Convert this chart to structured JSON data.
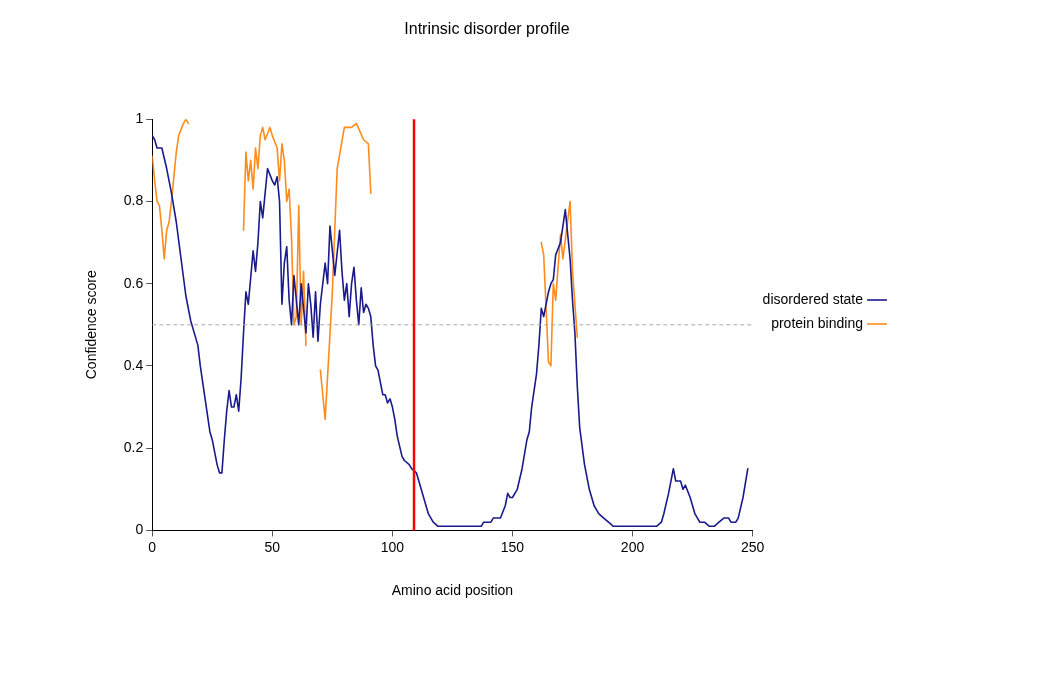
{
  "chart_data": {
    "type": "line",
    "title": "Intrinsic disorder profile",
    "xlabel": "Amino acid position",
    "ylabel": "Confidence score",
    "xlim": [
      0,
      250
    ],
    "xticks": [
      0,
      50,
      100,
      150,
      200,
      250
    ],
    "ylim": [
      0,
      1
    ],
    "yticks": [
      0,
      0.2,
      0.4,
      0.6,
      0.8,
      1
    ],
    "grid": false,
    "legend": "right",
    "marker": "none",
    "line_style": "solid",
    "ref_lines": [
      {
        "axis": "y",
        "value": 0.5,
        "color": "#aaaaaa",
        "line_style": "dashed"
      },
      {
        "axis": "x",
        "value": 109,
        "color": "#ff0000",
        "line_style": "solid"
      }
    ],
    "series": [
      {
        "name": "disordered state",
        "color": "#1a1a8c",
        "x": [
          0,
          1,
          2,
          4,
          6,
          8,
          10,
          12,
          14,
          16,
          18,
          19,
          20,
          22,
          24,
          25,
          27,
          28,
          29,
          30,
          31,
          32,
          33,
          34,
          35,
          36,
          37,
          38,
          39,
          40,
          42,
          43,
          44,
          45,
          46,
          48,
          50,
          51,
          52,
          53,
          54,
          55,
          56,
          57,
          58,
          59,
          60,
          61,
          62,
          64,
          65,
          66,
          67,
          68,
          69,
          70,
          72,
          73,
          74,
          76,
          78,
          79,
          80,
          81,
          82,
          83,
          84,
          85,
          86,
          87,
          88,
          89,
          90,
          91,
          92,
          93,
          94,
          95,
          96,
          97,
          98,
          99,
          100,
          101,
          102,
          104,
          105,
          107,
          108,
          110,
          111,
          113,
          115,
          117,
          119,
          125,
          130,
          137,
          138,
          141,
          142,
          145,
          147,
          148,
          149,
          150,
          152,
          154,
          156,
          157,
          158,
          160,
          161,
          162,
          163,
          165,
          166,
          167,
          168,
          170,
          172,
          173,
          174,
          175,
          176,
          177,
          178,
          180,
          182,
          184,
          186,
          188,
          190,
          192,
          210,
          212,
          213,
          215,
          217,
          218,
          220,
          221,
          222,
          224,
          226,
          228,
          230,
          232,
          234,
          236,
          238,
          240,
          241,
          243,
          244,
          246,
          248
        ],
        "values": [
          0.96,
          0.95,
          0.93,
          0.93,
          0.88,
          0.82,
          0.75,
          0.66,
          0.57,
          0.51,
          0.47,
          0.45,
          0.4,
          0.32,
          0.24,
          0.22,
          0.16,
          0.14,
          0.14,
          0.22,
          0.29,
          0.34,
          0.3,
          0.3,
          0.33,
          0.29,
          0.37,
          0.48,
          0.58,
          0.55,
          0.68,
          0.63,
          0.7,
          0.8,
          0.76,
          0.88,
          0.85,
          0.84,
          0.86,
          0.8,
          0.55,
          0.65,
          0.69,
          0.56,
          0.5,
          0.62,
          0.56,
          0.5,
          0.6,
          0.48,
          0.6,
          0.55,
          0.47,
          0.58,
          0.46,
          0.55,
          0.65,
          0.6,
          0.74,
          0.62,
          0.73,
          0.63,
          0.56,
          0.6,
          0.52,
          0.6,
          0.64,
          0.56,
          0.5,
          0.59,
          0.53,
          0.55,
          0.54,
          0.52,
          0.45,
          0.4,
          0.39,
          0.36,
          0.33,
          0.33,
          0.31,
          0.32,
          0.3,
          0.27,
          0.23,
          0.18,
          0.17,
          0.16,
          0.15,
          0.14,
          0.12,
          0.08,
          0.04,
          0.02,
          0.01,
          0.01,
          0.01,
          0.01,
          0.02,
          0.02,
          0.03,
          0.03,
          0.06,
          0.09,
          0.08,
          0.08,
          0.1,
          0.15,
          0.22,
          0.24,
          0.3,
          0.38,
          0.45,
          0.54,
          0.52,
          0.58,
          0.6,
          0.61,
          0.67,
          0.7,
          0.78,
          0.72,
          0.66,
          0.56,
          0.48,
          0.35,
          0.25,
          0.16,
          0.1,
          0.06,
          0.04,
          0.03,
          0.02,
          0.01,
          0.01,
          0.02,
          0.04,
          0.09,
          0.15,
          0.12,
          0.12,
          0.1,
          0.11,
          0.08,
          0.04,
          0.02,
          0.02,
          0.01,
          0.01,
          0.02,
          0.03,
          0.03,
          0.02,
          0.02,
          0.03,
          0.08,
          0.15
        ]
      },
      {
        "name": "protein binding",
        "color": "#ff8c1a",
        "x": [
          0,
          1,
          2,
          3,
          4,
          5,
          6,
          7,
          8,
          10,
          11,
          13,
          14,
          15,
          16,
          38,
          39,
          40,
          41,
          42,
          43,
          44,
          45,
          46,
          47,
          49,
          50,
          52,
          53,
          54,
          55,
          56,
          57,
          58,
          59,
          60,
          61,
          62,
          63,
          64,
          66,
          69,
          70,
          72,
          75,
          77,
          80,
          83,
          85,
          88,
          90,
          91,
          92,
          162,
          163,
          165,
          166,
          167,
          168,
          170,
          171,
          174,
          175,
          177
        ],
        "values": [
          0.91,
          0.85,
          0.8,
          0.79,
          0.73,
          0.66,
          0.73,
          0.75,
          0.8,
          0.92,
          0.96,
          0.99,
          1.0,
          0.99,
          null,
          0.73,
          0.92,
          0.85,
          0.9,
          0.83,
          0.93,
          0.88,
          0.96,
          0.98,
          0.95,
          0.98,
          0.96,
          0.93,
          0.85,
          0.94,
          0.9,
          0.8,
          0.83,
          0.71,
          0.5,
          0.52,
          0.79,
          0.5,
          0.63,
          0.45,
          null,
          null,
          0.39,
          0.27,
          0.58,
          0.88,
          0.98,
          0.98,
          0.99,
          0.95,
          0.94,
          0.82,
          null,
          0.7,
          0.67,
          0.41,
          0.4,
          0.6,
          0.56,
          0.72,
          0.66,
          0.8,
          0.63,
          0.47
        ]
      }
    ]
  }
}
